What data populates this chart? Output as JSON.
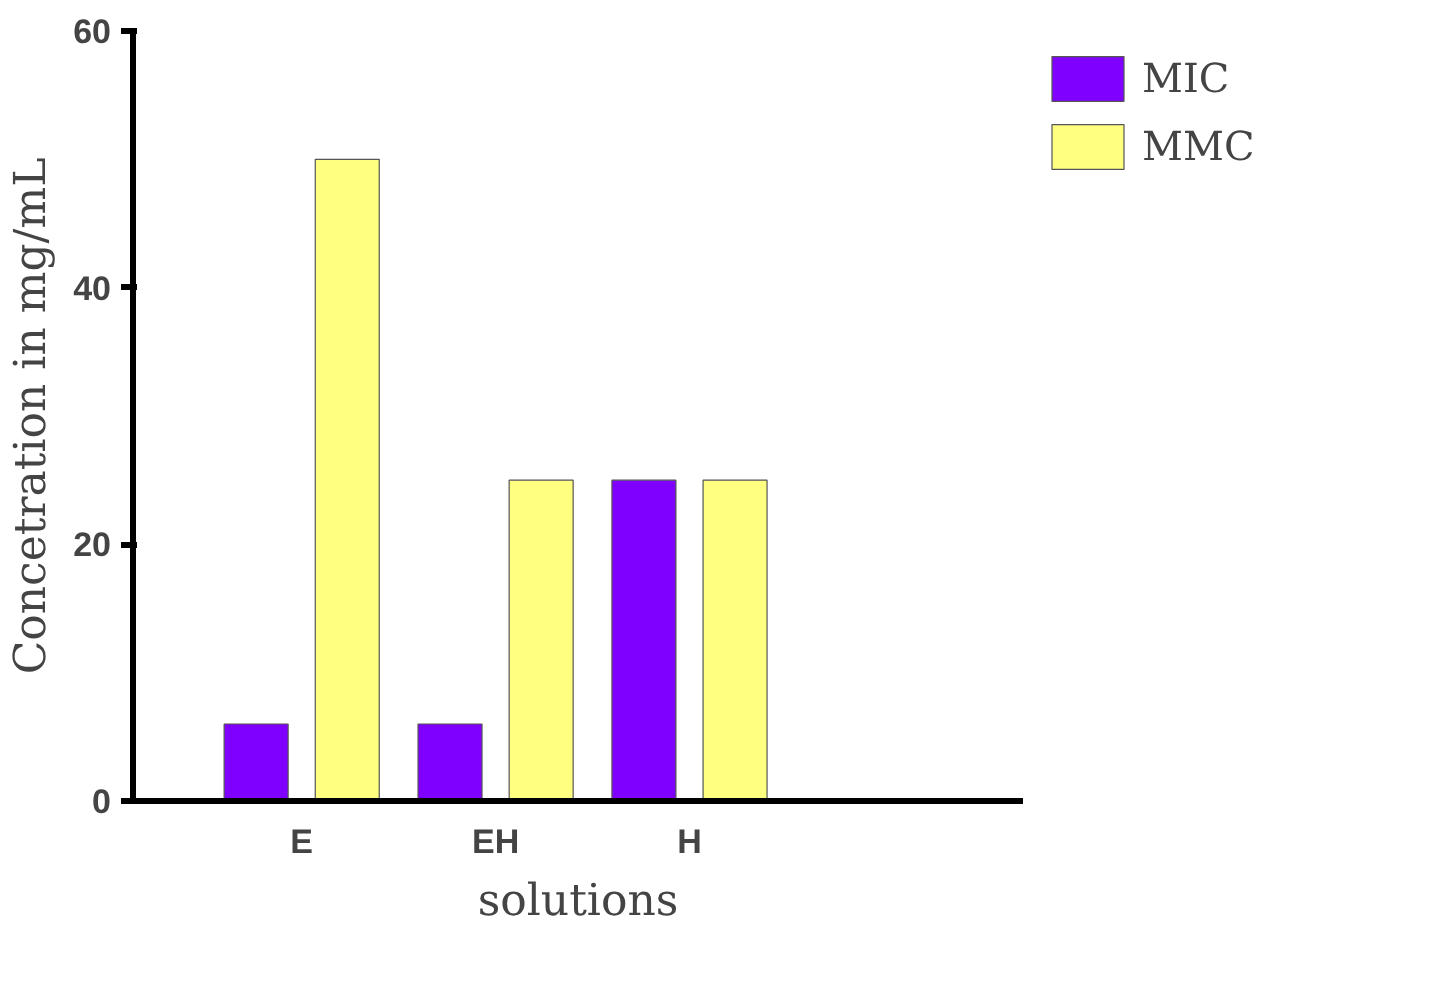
{
  "chart_data": {
    "type": "bar",
    "xlabel": "solutions",
    "ylabel": "Concetration in mg/mL",
    "categories": [
      "E",
      "EH",
      "H"
    ],
    "series": [
      {
        "name": "MIC",
        "color": "#8000ff",
        "values": [
          6,
          6,
          25
        ]
      },
      {
        "name": "MMC",
        "color": "#ffff80",
        "values": [
          50,
          25,
          25
        ]
      }
    ],
    "ylim": [
      0,
      60
    ],
    "yticks": [
      0,
      20,
      40,
      60
    ],
    "grid": false,
    "legend": "top right"
  }
}
